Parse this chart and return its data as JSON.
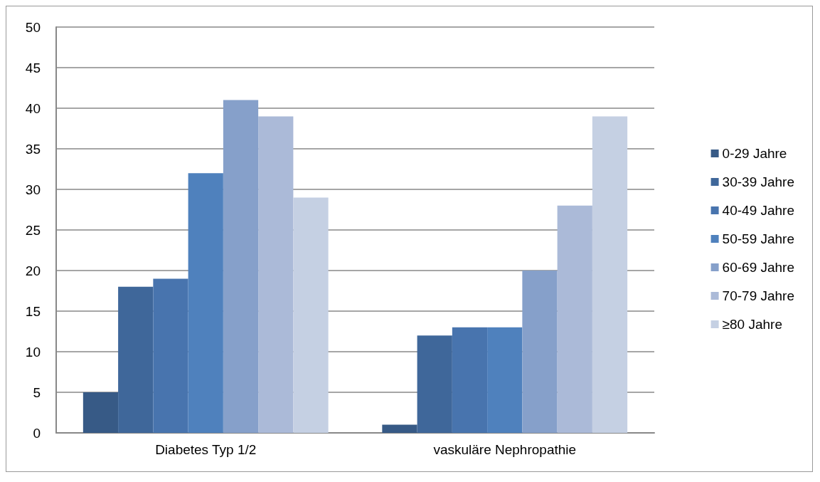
{
  "chart_data": {
    "type": "bar",
    "categories": [
      "Diabetes Typ 1/2",
      "vaskuläre Nephropathie"
    ],
    "series": [
      {
        "name": "0-29 Jahre",
        "color": "#375a86",
        "values": [
          5,
          1
        ]
      },
      {
        "name": "30-39 Jahre",
        "color": "#3f679a",
        "values": [
          18,
          12
        ]
      },
      {
        "name": "40-49 Jahre",
        "color": "#4874ae",
        "values": [
          19,
          13
        ]
      },
      {
        "name": "50-59 Jahre",
        "color": "#4f81bd",
        "values": [
          32,
          13
        ]
      },
      {
        "name": "60-69 Jahre",
        "color": "#86a0ca",
        "values": [
          41,
          20
        ]
      },
      {
        "name": "70-79 Jahre",
        "color": "#abbad8",
        "values": [
          39,
          28
        ]
      },
      {
        "name": "≥80 Jahre",
        "color": "#c5d0e3",
        "values": [
          29,
          39
        ]
      }
    ],
    "ylim": [
      0,
      50
    ],
    "yticks": [
      0,
      5,
      10,
      15,
      20,
      25,
      30,
      35,
      40,
      45,
      50
    ],
    "grid": "y",
    "legend": "right"
  }
}
